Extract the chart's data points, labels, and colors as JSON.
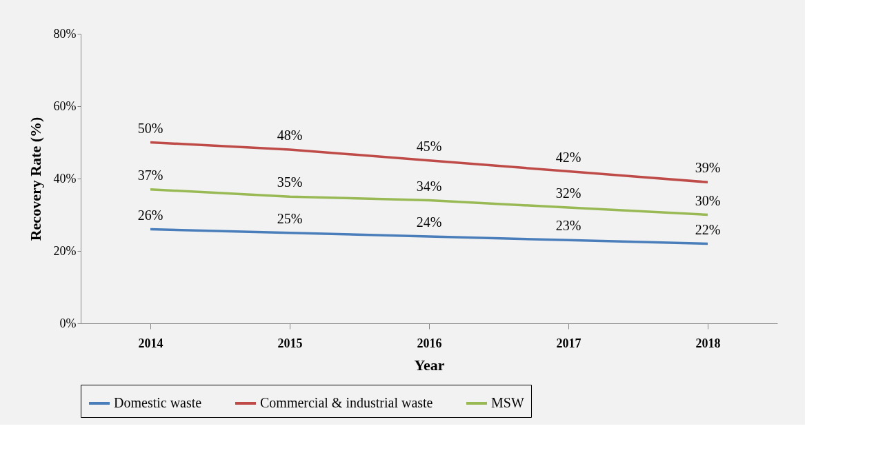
{
  "chart_data": {
    "type": "line",
    "xlabel": "Year",
    "ylabel": "Recovery Rate (%)",
    "categories": [
      "2014",
      "2015",
      "2016",
      "2017",
      "2018"
    ],
    "series": [
      {
        "name": "Domestic waste",
        "color": "#4a7ebb",
        "values": [
          26,
          25,
          24,
          23,
          22
        ],
        "value_labels": [
          "26%",
          "25%",
          "24%",
          "23%",
          "22%"
        ]
      },
      {
        "name": "Commercial & industrial waste",
        "color": "#be4b48",
        "values": [
          50,
          48,
          45,
          42,
          39
        ],
        "value_labels": [
          "50%",
          "48%",
          "45%",
          "42%",
          "39%"
        ]
      },
      {
        "name": "MSW",
        "color": "#98b954",
        "values": [
          37,
          35,
          34,
          32,
          30
        ],
        "value_labels": [
          "37%",
          "35%",
          "34%",
          "32%",
          "30%"
        ]
      }
    ],
    "ylim": [
      0,
      80
    ],
    "yticks": [
      {
        "value": 0,
        "label": "0%"
      },
      {
        "value": 20,
        "label": "20%"
      },
      {
        "value": 40,
        "label": "40%"
      },
      {
        "value": 60,
        "label": "60%"
      },
      {
        "value": 80,
        "label": "80%"
      }
    ],
    "grid": false,
    "legend": "bottom",
    "marker": "none",
    "line_style": "solid"
  }
}
